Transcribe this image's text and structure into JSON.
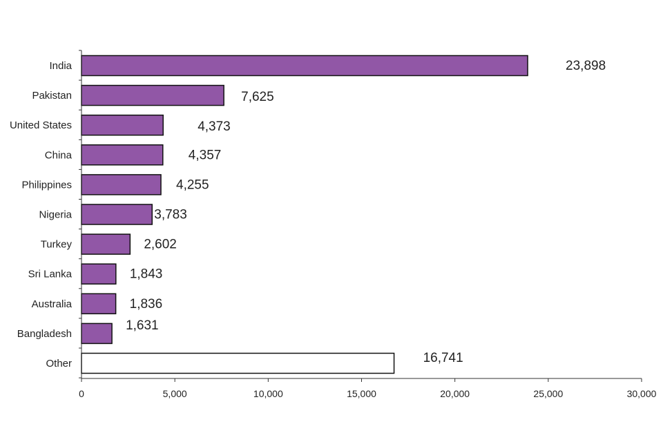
{
  "chart_data": {
    "type": "bar",
    "orientation": "horizontal",
    "title": "",
    "xlabel": "",
    "ylabel": "",
    "xlim": [
      0,
      30000
    ],
    "x_ticks": [
      0,
      5000,
      10000,
      15000,
      20000,
      25000,
      30000
    ],
    "x_tick_labels": [
      "0",
      "5,000",
      "10,000",
      "15,000",
      "20,000",
      "25,000",
      "30,000"
    ],
    "grid": false,
    "categories": [
      "India",
      "Pakistan",
      "United States",
      "China",
      "Philippines",
      "Nigeria",
      "Turkey",
      "Sri Lanka",
      "Australia",
      "Bangladesh",
      "Other"
    ],
    "values": [
      23898,
      7625,
      4373,
      4357,
      4255,
      3783,
      2602,
      1843,
      1836,
      1631,
      16741
    ],
    "value_labels": [
      "23,898",
      "7,625",
      "4,373",
      "4,357",
      "4,255",
      "3,783",
      "2,602",
      "1,843",
      "1,836",
      "1,631",
      "16,741"
    ],
    "colors": {
      "bar": "#9157a6",
      "other_bar": "#ffffff",
      "outline": "#111111",
      "axis": "#333333"
    }
  }
}
